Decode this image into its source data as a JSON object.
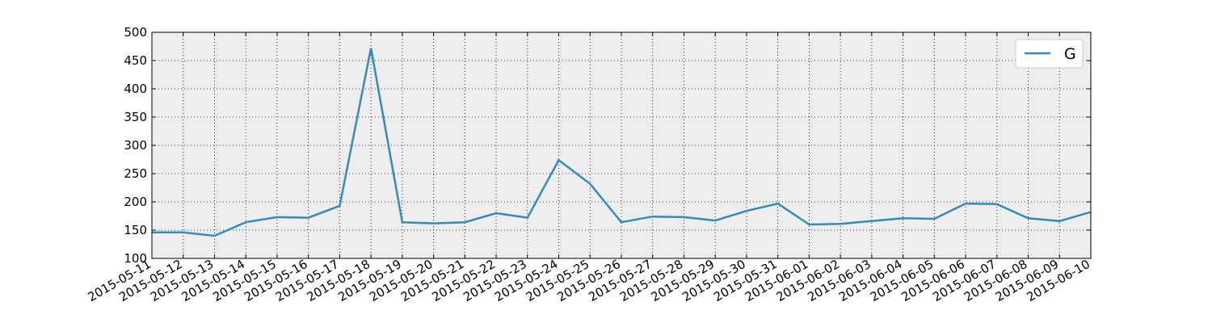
{
  "chart_data": {
    "type": "line",
    "title": "",
    "xlabel": "",
    "ylabel": "",
    "ylim": [
      100,
      500
    ],
    "yticks": [
      100,
      150,
      200,
      250,
      300,
      350,
      400,
      450,
      500
    ],
    "grid": true,
    "legend_position": "top-right",
    "x": [
      "2015-05-11",
      "2015-05-12",
      "2015-05-13",
      "2015-05-14",
      "2015-05-15",
      "2015-05-16",
      "2015-05-17",
      "2015-05-18",
      "2015-05-19",
      "2015-05-20",
      "2015-05-21",
      "2015-05-22",
      "2015-05-23",
      "2015-05-24",
      "2015-05-25",
      "2015-05-26",
      "2015-05-27",
      "2015-05-28",
      "2015-05-29",
      "2015-05-30",
      "2015-05-31",
      "2015-06-01",
      "2015-06-02",
      "2015-06-03",
      "2015-06-04",
      "2015-06-05",
      "2015-06-06",
      "2015-06-07",
      "2015-06-08",
      "2015-06-09",
      "2015-06-10"
    ],
    "series": [
      {
        "name": "G",
        "color": "#348abd",
        "values": [
          146,
          146,
          140,
          164,
          173,
          172,
          193,
          472,
          164,
          162,
          164,
          180,
          172,
          274,
          232,
          164,
          174,
          173,
          167,
          184,
          197,
          160,
          161,
          166,
          171,
          170,
          197,
          196,
          171,
          166,
          182
        ]
      }
    ]
  },
  "colors": {
    "plot_background": "#eeeeee",
    "grid": "#000000",
    "line": "#348abd"
  }
}
